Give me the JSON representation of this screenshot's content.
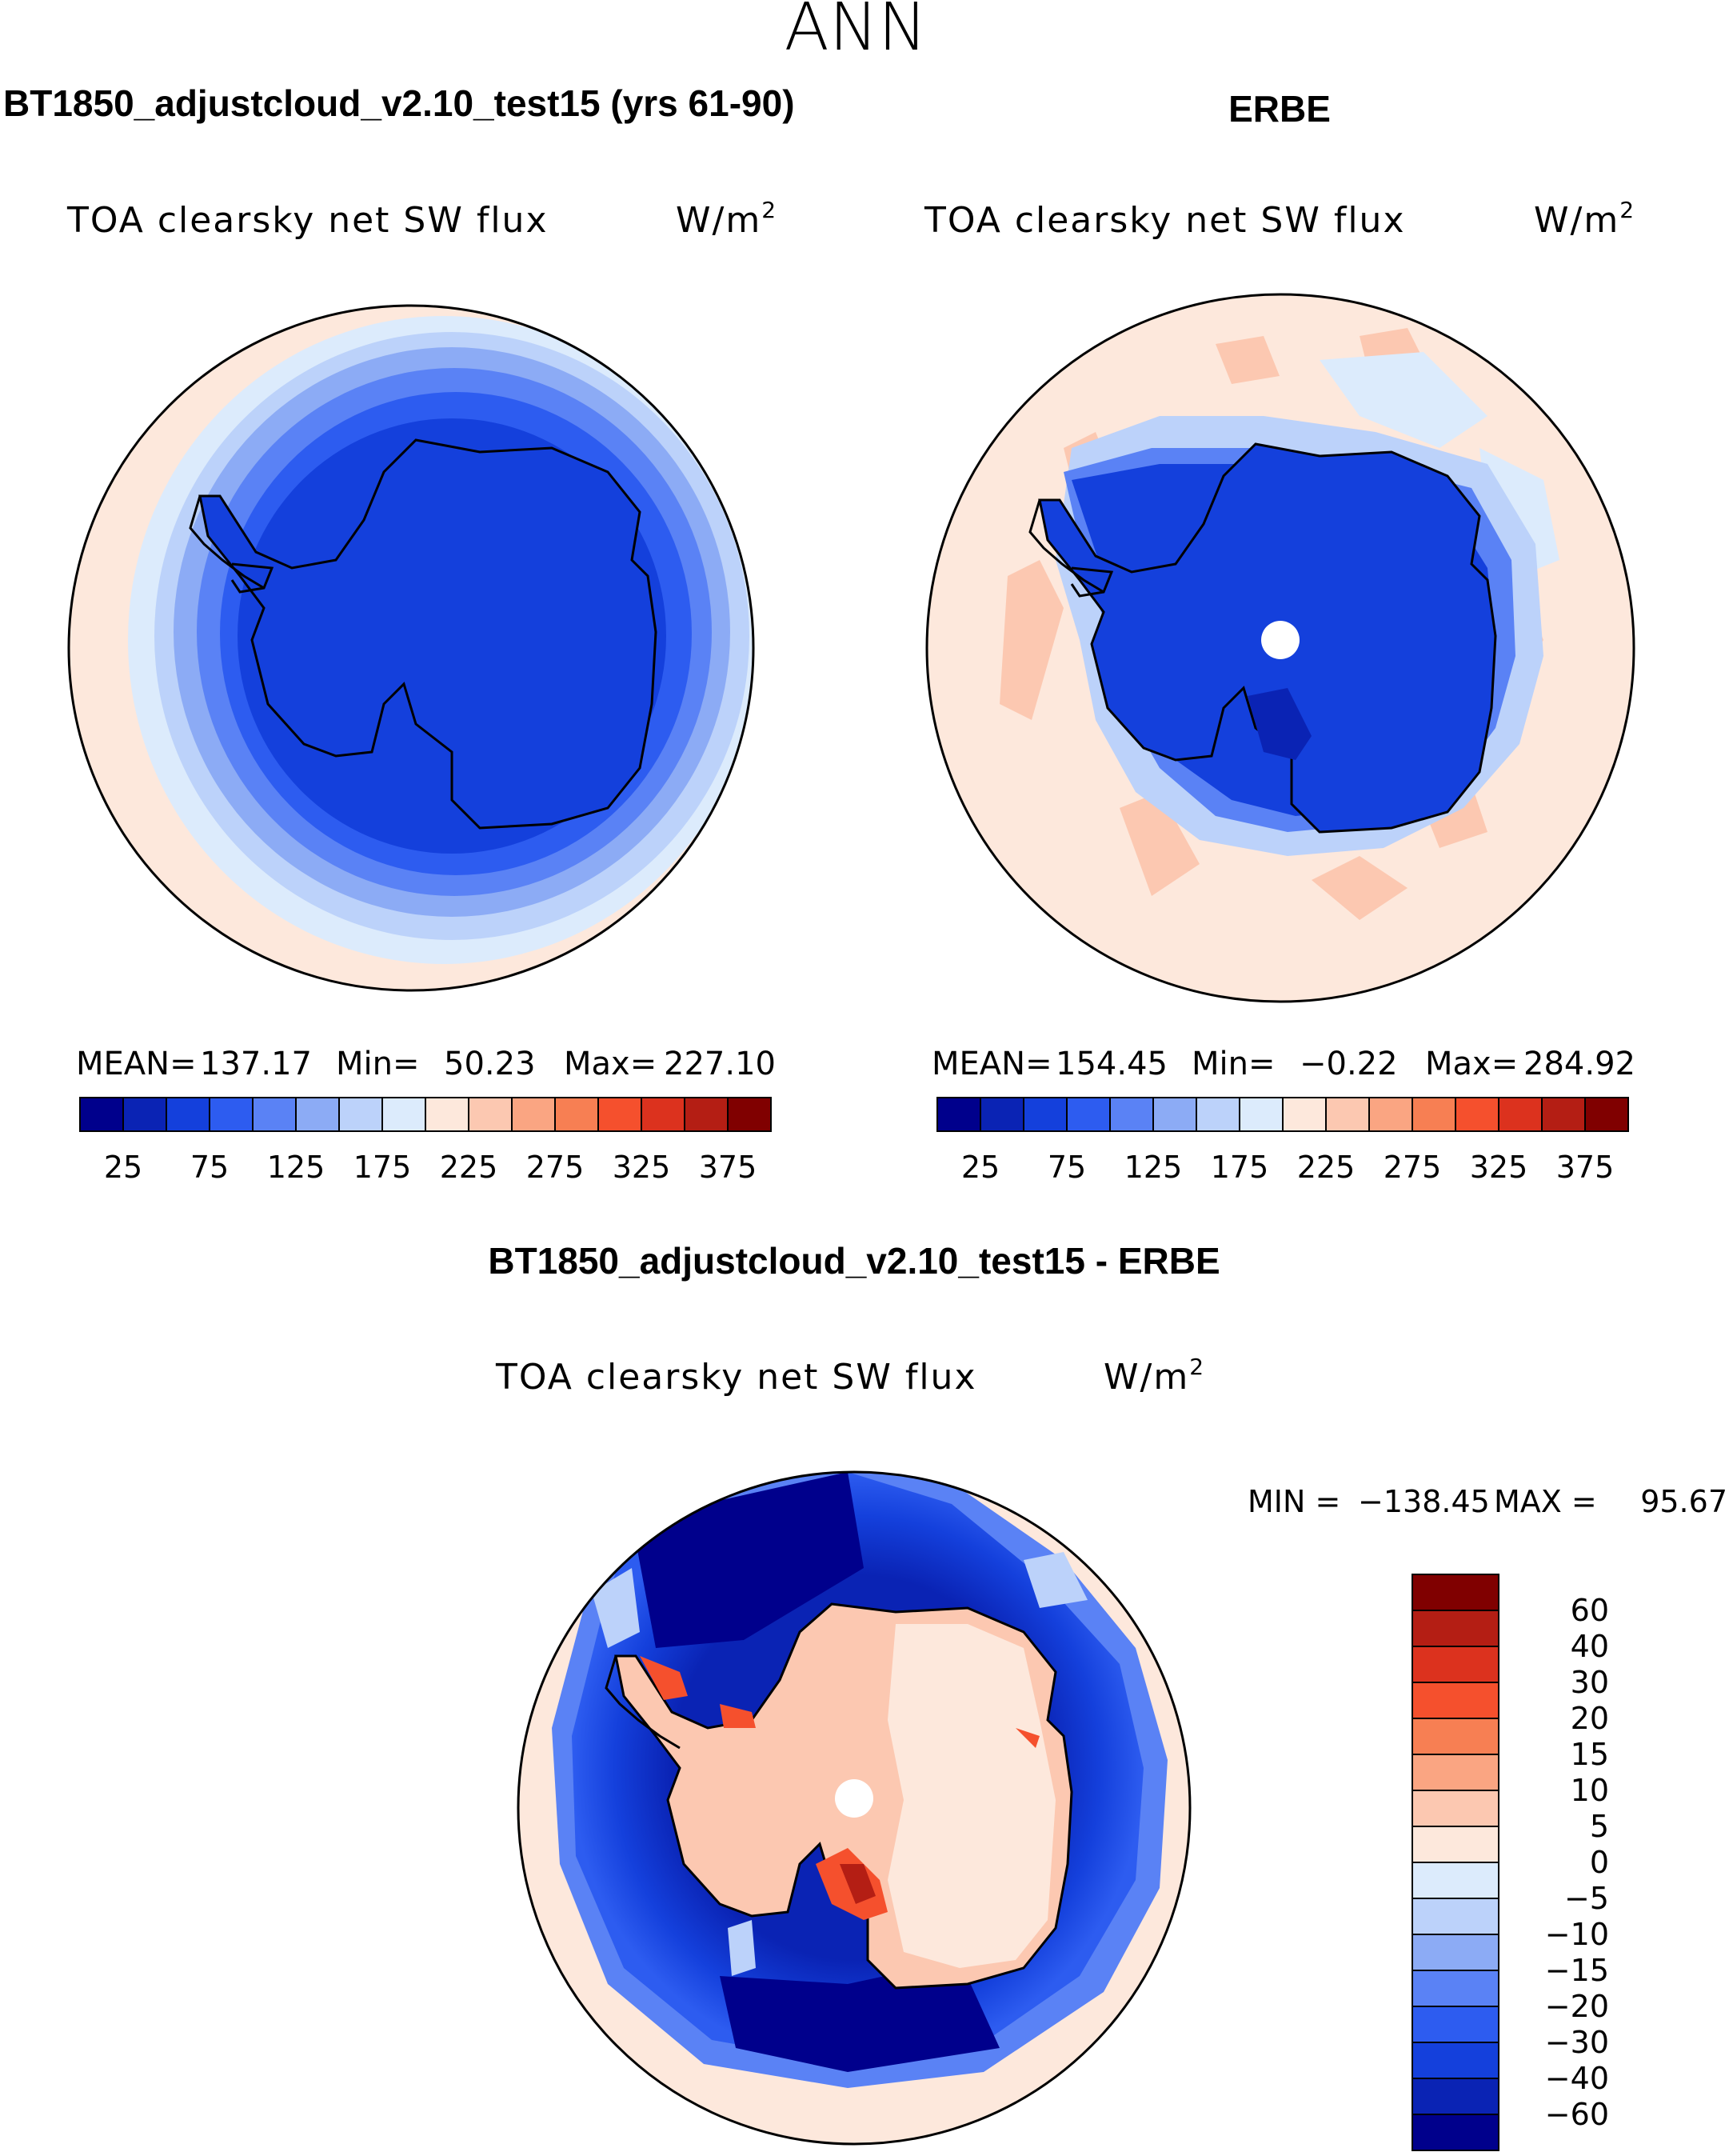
{
  "chart_data": {
    "type": "heatmap",
    "projection": "south-polar-stereographic",
    "season": "ANN",
    "units_text": "W/m",
    "units_exponent": "2",
    "panels": [
      {
        "id": "model",
        "title": "BT1850_adjustcloud_v2.10_test15 (yrs 61-90)",
        "subtitle": "TOA clearsky net SW flux",
        "stats": [
          {
            "label": "MEAN=",
            "value": "137.17"
          },
          {
            "label": "Min=",
            "value": "50.23"
          },
          {
            "label": "Max=",
            "value": "227.10"
          }
        ],
        "levels": [
          "25",
          "75",
          "125",
          "175",
          "225",
          "275",
          "325",
          "375"
        ],
        "colors": [
          "#00008c",
          "#0a23b4",
          "#1440dc",
          "#2d5cf0",
          "#5a82f5",
          "#8cabf5",
          "#bcd2fa",
          "#dcebfc",
          "#fde8dc",
          "#fcc8b1",
          "#faa582",
          "#f77f53",
          "#f5502d",
          "#dc321e",
          "#b41e14",
          "#800000"
        ]
      },
      {
        "id": "obs",
        "title": "ERBE",
        "subtitle": "TOA clearsky net SW flux",
        "stats": [
          {
            "label": "MEAN=",
            "value": "154.45"
          },
          {
            "label": "Min=",
            "value": "−0.22"
          },
          {
            "label": "Max=",
            "value": "284.92"
          }
        ],
        "levels": [
          "25",
          "75",
          "125",
          "175",
          "225",
          "275",
          "325",
          "375"
        ],
        "colors": [
          "#00008c",
          "#0a23b4",
          "#1440dc",
          "#2d5cf0",
          "#5a82f5",
          "#8cabf5",
          "#bcd2fa",
          "#dcebfc",
          "#fde8dc",
          "#fcc8b1",
          "#faa582",
          "#f77f53",
          "#f5502d",
          "#dc321e",
          "#b41e14",
          "#800000"
        ]
      },
      {
        "id": "diff",
        "title": "BT1850_adjustcloud_v2.10_test15 - ERBE",
        "subtitle": "TOA clearsky net SW flux",
        "min_label": "MIN =",
        "min_value": "−138.45",
        "max_label": "MAX =",
        "max_value": "95.67",
        "levels": [
          "60",
          "40",
          "30",
          "20",
          "15",
          "10",
          "5",
          "0",
          "−5",
          "−10",
          "−15",
          "−20",
          "−30",
          "−40",
          "−60"
        ],
        "colors": [
          "#800000",
          "#b41e14",
          "#dc321e",
          "#f5502d",
          "#f77f53",
          "#faa582",
          "#fcc8b1",
          "#fde8dc",
          "#dcebfc",
          "#bcd2fa",
          "#8cabf5",
          "#5a82f5",
          "#2d5cf0",
          "#1440dc",
          "#0a23b4",
          "#00008c"
        ]
      }
    ]
  }
}
